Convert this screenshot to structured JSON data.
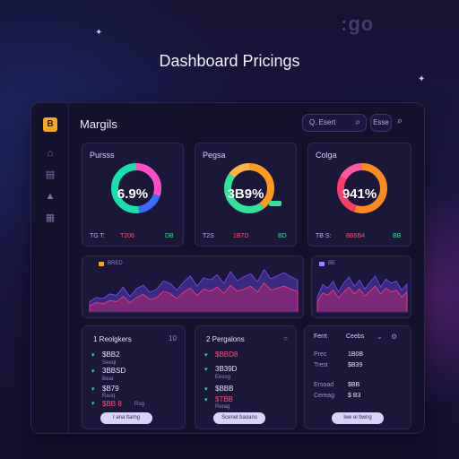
{
  "brand": ":go",
  "hero_title": "Dashboard Pricings",
  "app": {
    "title": "Margils",
    "logo_glyph": "B",
    "search_placeholder": "Q. Esert",
    "chip_label": "Esse",
    "rail_icons": [
      "home-icon",
      "building-icon",
      "thumb-icon",
      "calendar-icon"
    ]
  },
  "donuts": [
    {
      "title": "Pursss",
      "value": "6.9%",
      "stat_a": "TG T:",
      "stat_b": "T206",
      "stat_c": "DB",
      "segments": [
        {
          "color": "#ff4fc2",
          "frac": 0.3
        },
        {
          "color": "#3a6cff",
          "frac": 0.18
        },
        {
          "color": "#17e0b0",
          "frac": 0.52
        }
      ]
    },
    {
      "title": "Pegsa",
      "value": "3B9%",
      "stat_a": "T2S",
      "stat_b": "1B7D",
      "stat_c": "BD",
      "segments": [
        {
          "color": "#ff9a1f",
          "frac": 0.4
        },
        {
          "color": "#2fe39a",
          "frac": 0.45
        },
        {
          "color": "#ffb347",
          "frac": 0.15
        }
      ]
    },
    {
      "title": "Colga",
      "value": "941%",
      "stat_a": "TB S:",
      "stat_b": "8B6B4",
      "stat_c": "BB",
      "segments": [
        {
          "color": "#ff8a1f",
          "frac": 0.55
        },
        {
          "color": "#ff3b6a",
          "frac": 0.28
        },
        {
          "color": "#ff5aa0",
          "frac": 0.17
        }
      ]
    }
  ],
  "chart_data": [
    {
      "type": "area",
      "legend": [
        "BRED"
      ],
      "series": [
        {
          "values": [
            20,
            28,
            26,
            35,
            32,
            48,
            30,
            45,
            52,
            38,
            44,
            60,
            55,
            42,
            58,
            70,
            50,
            66,
            62,
            72,
            55,
            78,
            60,
            68,
            74,
            58,
            82,
            64,
            70,
            76,
            68,
            62
          ]
        },
        {
          "values": [
            12,
            18,
            16,
            22,
            20,
            30,
            18,
            28,
            34,
            24,
            28,
            40,
            36,
            26,
            38,
            46,
            32,
            44,
            40,
            48,
            36,
            52,
            40,
            44,
            50,
            38,
            56,
            42,
            46,
            50,
            44,
            40
          ]
        }
      ]
    },
    {
      "type": "area",
      "legend": [
        "BE"
      ],
      "series": [
        {
          "values": [
            30,
            55,
            48,
            62,
            40,
            58,
            70,
            52,
            64,
            46,
            60,
            72,
            50,
            66,
            58,
            62,
            44,
            56
          ]
        },
        {
          "values": [
            20,
            38,
            34,
            44,
            28,
            40,
            50,
            36,
            46,
            32,
            42,
            52,
            36,
            48,
            40,
            44,
            30,
            40
          ]
        }
      ]
    }
  ],
  "list_left": {
    "title": "1  Reolgkers",
    "count": "10",
    "rows": [
      {
        "a": "$BB2",
        "b": "Seeql",
        "red": false
      },
      {
        "a": "3BBSD",
        "b": "Beal",
        "red": false
      },
      {
        "a": "$B79",
        "b": "Rauq",
        "red": false
      },
      {
        "a": "$BB 8",
        "b": "Rog",
        "red": true
      }
    ],
    "button": "I ana ltarng"
  },
  "list_mid": {
    "title": "2  Pergalons",
    "rows": [
      {
        "a": "$BBD8",
        "b": "",
        "red": true
      },
      {
        "a": "3B39D",
        "b": "Eesog",
        "red": false
      },
      {
        "a": "$BBB",
        "b": "",
        "red": false
      },
      {
        "a": "$TBB",
        "b": "Rerag",
        "red": true
      }
    ],
    "button": "Scenel baoans"
  },
  "table_right": {
    "headers": [
      "Ferrt",
      "Ceebs"
    ],
    "rows": [
      {
        "label": "Prec",
        "value": "1B0B"
      },
      {
        "label": "Trest",
        "value": "$B39"
      },
      {
        "label": "Ersoad",
        "value": "$BB"
      },
      {
        "label": "Cereag",
        "value": "$ B3"
      }
    ],
    "button": "lwe el bwng"
  }
}
